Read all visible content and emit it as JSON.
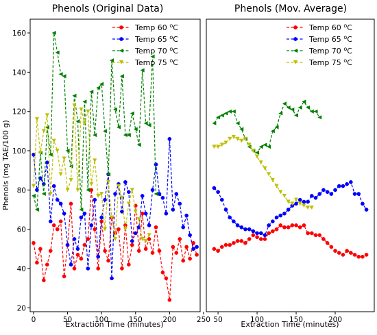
{
  "chart_data": [
    {
      "type": "line",
      "title": "Phenols (Original Data)",
      "xlabel": "Extraction Time (minutes)",
      "ylabel": "Phenols (mg TAE/100 g)",
      "xlim": [
        -5,
        245
      ],
      "ylim": [
        18,
        167
      ],
      "xticks": [
        0,
        50,
        100,
        150,
        200,
        250
      ],
      "yticks": [
        20,
        40,
        60,
        80,
        100,
        120,
        140,
        160
      ],
      "legend": "top-right",
      "grid": false,
      "series": [
        {
          "name": "Temp 60 °C",
          "name_parts": [
            "Temp 60 ",
            "o",
            "C"
          ],
          "color": "#ff0000",
          "marker": "circle",
          "x": [
            0,
            5,
            10,
            15,
            20,
            25,
            30,
            35,
            40,
            45,
            50,
            55,
            60,
            65,
            70,
            75,
            80,
            85,
            90,
            95,
            100,
            105,
            110,
            115,
            120,
            125,
            130,
            135,
            140,
            145,
            150,
            155,
            160,
            165,
            170,
            175,
            180,
            185,
            190,
            195,
            200,
            205,
            210,
            215,
            220,
            225,
            230,
            235,
            240
          ],
          "y": [
            53,
            43,
            50,
            34,
            42,
            49,
            62,
            60,
            64,
            36,
            52,
            73,
            40,
            47,
            45,
            52,
            55,
            80,
            60,
            40,
            64,
            49,
            44,
            66,
            58,
            60,
            40,
            62,
            42,
            52,
            72,
            49,
            68,
            50,
            55,
            48,
            61,
            49,
            38,
            35,
            24,
            51,
            48,
            55,
            44,
            51,
            45,
            53,
            47
          ]
        },
        {
          "name": "Temp 65 °C",
          "name_parts": [
            "Temp 65 ",
            "o",
            "C"
          ],
          "color": "#0000ff",
          "marker": "circle",
          "x": [
            0,
            5,
            10,
            15,
            20,
            25,
            30,
            35,
            40,
            45,
            50,
            55,
            60,
            65,
            70,
            75,
            80,
            85,
            90,
            95,
            100,
            105,
            110,
            115,
            120,
            125,
            130,
            135,
            140,
            145,
            150,
            155,
            160,
            165,
            170,
            175,
            180,
            185,
            190,
            195,
            200,
            205,
            210,
            215,
            220,
            225,
            230,
            235,
            240
          ],
          "y": [
            98,
            80,
            86,
            83,
            94,
            64,
            82,
            75,
            73,
            68,
            52,
            42,
            55,
            50,
            66,
            68,
            40,
            62,
            75,
            46,
            66,
            75,
            88,
            35,
            78,
            83,
            69,
            84,
            79,
            54,
            58,
            61,
            77,
            68,
            62,
            80,
            93,
            78,
            76,
            68,
            106,
            70,
            78,
            73,
            61,
            67,
            57,
            50,
            51
          ]
        },
        {
          "name": "Temp 70 °C",
          "name_parts": [
            "Temp 70 ",
            "o",
            "C"
          ],
          "color": "#008000",
          "marker": "triangle-left",
          "x": [
            0,
            5,
            10,
            15,
            20,
            25,
            30,
            35,
            40,
            45,
            50,
            55,
            60,
            65,
            70,
            75,
            80,
            85,
            90,
            95,
            100,
            105,
            110,
            115,
            120,
            125,
            130,
            135,
            140,
            145,
            150,
            155,
            160,
            165,
            170,
            175,
            180
          ],
          "y": [
            77,
            70,
            99,
            78,
            112,
            98,
            160,
            150,
            139,
            138,
            100,
            92,
            128,
            115,
            70,
            125,
            80,
            130,
            108,
            132,
            134,
            110,
            88,
            146,
            121,
            112,
            138,
            108,
            108,
            119,
            111,
            103,
            141,
            114,
            113,
            148,
            78
          ]
        },
        {
          "name": "Temp 75 °C",
          "name_parts": [
            "Temp 75 ",
            "o",
            "C"
          ],
          "color": "#bfbf00",
          "marker": "triangle-down",
          "x": [
            0,
            5,
            10,
            15,
            20,
            25,
            30,
            35,
            40,
            45,
            50,
            55,
            60,
            65,
            70,
            75,
            80,
            85,
            90,
            95,
            100,
            105,
            110,
            115,
            120,
            125,
            130,
            135,
            140,
            145,
            150,
            155,
            160,
            165,
            170
          ],
          "y": [
            82,
            116,
            99,
            110,
            118,
            78,
            105,
            100,
            88,
            96,
            80,
            85,
            123,
            80,
            121,
            114,
            120,
            83,
            95,
            77,
            78,
            60,
            84,
            66,
            55,
            82,
            76,
            60,
            73,
            80,
            69,
            65,
            55,
            54,
            57
          ]
        }
      ]
    },
    {
      "type": "line",
      "title": "Phenols (Mov. Average)",
      "xlabel": "Extraction Time (minutes)",
      "ylabel": "",
      "xlim": [
        35,
        250
      ],
      "ylim": [
        18,
        167
      ],
      "xticks": [
        50,
        100,
        150,
        200
      ],
      "yticks": [],
      "legend": "top-right",
      "grid": false,
      "series": [
        {
          "name": "Temp 60 °C",
          "name_parts": [
            "Temp 60 ",
            "o",
            "C"
          ],
          "color": "#ff0000",
          "marker": "circle",
          "x": [
            45,
            50,
            55,
            60,
            65,
            70,
            75,
            80,
            85,
            90,
            95,
            100,
            105,
            110,
            115,
            120,
            125,
            130,
            135,
            140,
            145,
            150,
            155,
            160,
            165,
            170,
            175,
            180,
            185,
            190,
            195,
            200,
            205,
            210,
            215,
            220,
            225,
            230,
            235,
            240
          ],
          "y": [
            50,
            49,
            51,
            52,
            52,
            53,
            54,
            54,
            53,
            55,
            57,
            56,
            55,
            55,
            58,
            59,
            60,
            62,
            61,
            61,
            62,
            62,
            61,
            62,
            58,
            58,
            57,
            57,
            55,
            53,
            51,
            49,
            48,
            47,
            49,
            48,
            47,
            46,
            46,
            47
          ]
        },
        {
          "name": "Temp 65 °C",
          "name_parts": [
            "Temp 65 ",
            "o",
            "C"
          ],
          "color": "#0000ff",
          "marker": "circle",
          "x": [
            45,
            50,
            55,
            60,
            65,
            70,
            75,
            80,
            85,
            90,
            95,
            100,
            105,
            110,
            115,
            120,
            125,
            130,
            135,
            140,
            145,
            150,
            155,
            160,
            165,
            170,
            175,
            180,
            185,
            190,
            195,
            200,
            205,
            210,
            215,
            220,
            225,
            230,
            235,
            240
          ],
          "y": [
            81,
            79,
            75,
            70,
            66,
            64,
            62,
            61,
            60,
            60,
            59,
            58,
            58,
            57,
            62,
            64,
            66,
            67,
            68,
            70,
            72,
            73,
            75,
            74,
            74,
            77,
            76,
            78,
            80,
            79,
            78,
            80,
            82,
            82,
            83,
            84,
            78,
            78,
            73,
            70
          ]
        },
        {
          "name": "Temp 70 °C",
          "name_parts": [
            "Temp 70 ",
            "o",
            "C"
          ],
          "color": "#008000",
          "marker": "triangle-left",
          "x": [
            45,
            50,
            55,
            60,
            65,
            70,
            75,
            80,
            85,
            90,
            95,
            100,
            105,
            110,
            115,
            120,
            125,
            130,
            135,
            140,
            145,
            150,
            155,
            160,
            165,
            170,
            175,
            180
          ],
          "y": [
            114,
            117,
            118,
            119,
            120,
            120,
            114,
            111,
            106,
            102,
            100,
            99,
            102,
            103,
            102,
            110,
            112,
            119,
            124,
            122,
            121,
            118,
            122,
            125,
            122,
            120,
            120,
            117
          ]
        },
        {
          "name": "Temp 75 °C",
          "name_parts": [
            "Temp 75 ",
            "o",
            "C"
          ],
          "color": "#bfbf00",
          "marker": "triangle-down",
          "x": [
            45,
            50,
            55,
            60,
            65,
            70,
            75,
            80,
            85,
            90,
            95,
            100,
            105,
            110,
            115,
            120,
            125,
            130,
            135,
            140,
            145,
            150,
            155,
            160,
            165,
            170
          ],
          "y": [
            102,
            102,
            103,
            104,
            106,
            107,
            106,
            105,
            106,
            103,
            100,
            97,
            94,
            91,
            88,
            85,
            82,
            79,
            77,
            74,
            73,
            75,
            73,
            72,
            71,
            71
          ]
        }
      ]
    }
  ]
}
